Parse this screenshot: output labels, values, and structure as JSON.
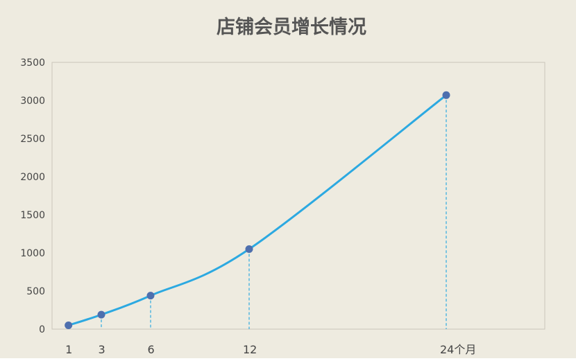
{
  "chart_data": {
    "type": "line",
    "title": "店铺会员增长情况",
    "x": [
      1,
      3,
      6,
      12,
      24
    ],
    "x_tick_labels": [
      "1",
      "3",
      "6",
      "12",
      "24个月"
    ],
    "series": [
      {
        "values": [
          50,
          190,
          440,
          1050,
          3070
        ]
      }
    ],
    "xlabel": "",
    "ylabel": "",
    "xlim": [
      0,
      30
    ],
    "ylim": [
      0,
      3500
    ],
    "y_ticks": [
      0,
      500,
      1000,
      1500,
      2000,
      2500,
      3000,
      3500
    ],
    "grid": false,
    "legend": "none",
    "smooth": true,
    "drop_lines": true,
    "colors": {
      "background": "#EEEBE0",
      "plot_border": "#C9C6BA",
      "line": "#2CA9E1",
      "marker": "#4E6FAE",
      "drop_line": "#2CA9E1",
      "title": "#555555",
      "tick_text": "#444444"
    }
  }
}
